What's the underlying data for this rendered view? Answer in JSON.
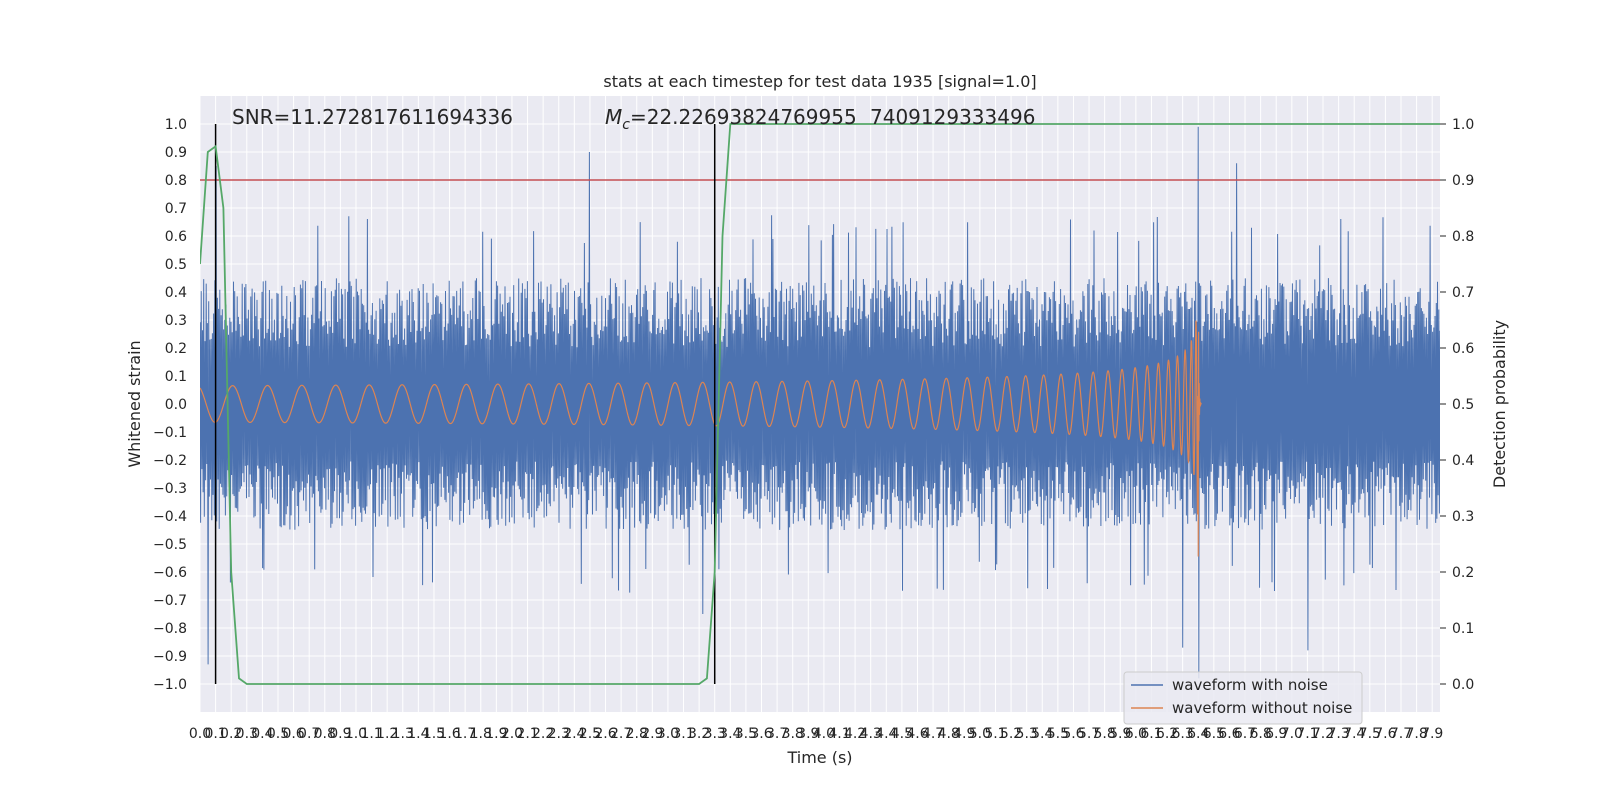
{
  "chart_data": {
    "type": "line",
    "title": "stats at each timestep for test data 1935 [signal=1.0]",
    "xlabel": "Time (s)",
    "ylabel": "Whitened strain",
    "ylabel_right": "Detection probability",
    "xlim": [
      0.0,
      7.95
    ],
    "ylim": [
      -1.1,
      1.1
    ],
    "ylim_right": [
      -0.05,
      1.05
    ],
    "x_ticks": [
      0.0,
      0.1,
      0.2,
      0.3,
      0.4,
      0.5,
      0.6,
      0.7,
      0.8,
      0.9,
      1.0,
      1.1,
      1.2,
      1.3,
      1.4,
      1.5,
      1.6,
      1.7,
      1.8,
      1.9,
      2.0,
      2.1,
      2.2,
      2.3,
      2.4,
      2.5,
      2.6,
      2.7,
      2.8,
      2.9,
      3.0,
      3.1,
      3.2,
      3.3,
      3.4,
      3.5,
      3.6,
      3.7,
      3.8,
      3.9,
      4.0,
      4.1,
      4.2,
      4.3,
      4.4,
      4.5,
      4.6,
      4.7,
      4.8,
      4.9,
      5.0,
      5.1,
      5.2,
      5.3,
      5.4,
      5.5,
      5.6,
      5.7,
      5.8,
      5.9,
      6.0,
      6.1,
      6.2,
      6.3,
      6.4,
      6.5,
      6.6,
      6.7,
      6.8,
      6.9,
      7.0,
      7.1,
      7.2,
      7.3,
      7.4,
      7.5,
      7.6,
      7.7,
      7.8,
      7.9
    ],
    "x_tick_labels": [
      "0.0",
      "0.1",
      "0.2",
      "0.3",
      "0.4",
      "0.5",
      "0.6",
      "0.7",
      "0.8",
      "0.9",
      "1.0",
      "1.1",
      "1.2",
      "1.3",
      "1.4",
      "1.5",
      "1.6",
      "1.7",
      "1.8",
      "1.9",
      "2.0",
      "2.1",
      "2.2",
      "2.3",
      "2.4",
      "2.5",
      "2.6",
      "2.7",
      "2.8",
      "2.9",
      "3.0",
      "3.1",
      "3.2",
      "3.3",
      "3.4",
      "3.5",
      "3.6",
      "3.7",
      "3.8",
      "3.9",
      "4.0",
      "4.1",
      "4.2",
      "4.3",
      "4.4",
      "4.5",
      "4.6",
      "4.7",
      "4.8",
      "4.9",
      "5.0",
      "5.1",
      "5.2",
      "5.3",
      "5.4",
      "5.5",
      "5.6",
      "5.7",
      "5.8",
      "5.9",
      "6.0",
      "6.1",
      "6.2",
      "6.3",
      "6.4",
      "6.5",
      "6.6",
      "6.7",
      "6.8",
      "6.9",
      "7.0",
      "7.1",
      "7.2",
      "7.3",
      "7.4",
      "7.5",
      "7.6",
      "7.7",
      "7.8",
      "7.9"
    ],
    "y_ticks": [
      -1.0,
      -0.9,
      -0.8,
      -0.7,
      -0.6,
      -0.5,
      -0.4,
      -0.3,
      -0.2,
      -0.1,
      0.0,
      0.1,
      0.2,
      0.3,
      0.4,
      0.5,
      0.6,
      0.7,
      0.8,
      0.9,
      1.0
    ],
    "y_tick_labels": [
      "−1.0",
      "−0.9",
      "−0.8",
      "−0.7",
      "−0.6",
      "−0.5",
      "−0.4",
      "−0.3",
      "−0.2",
      "−0.1",
      "0.0",
      "0.1",
      "0.2",
      "0.3",
      "0.4",
      "0.5",
      "0.6",
      "0.7",
      "0.8",
      "0.9",
      "1.0"
    ],
    "y_ticks_right": [
      0.0,
      0.1,
      0.2,
      0.3,
      0.4,
      0.5,
      0.6,
      0.7,
      0.8,
      0.9,
      1.0
    ],
    "y_tick_labels_right": [
      "0.0",
      "0.1",
      "0.2",
      "0.3",
      "0.4",
      "0.5",
      "0.6",
      "0.7",
      "0.8",
      "0.9",
      "1.0"
    ],
    "grid": true,
    "legend_position": "lower-right",
    "annotations": {
      "snr": "SNR=11.272817611694336",
      "mc_symbol": "M",
      "mc_sub": "c",
      "mc_value": "=22.22693824769955",
      "mc_overlap": "7409129333496"
    },
    "series": [
      {
        "name": "waveform with noise",
        "color": "#4c72b0",
        "kind": "noise",
        "x_range": [
          0.0,
          7.95
        ],
        "typical_envelope": [
          -0.45,
          0.45
        ],
        "notable_peaks": [
          {
            "x": 0.05,
            "y": -0.93
          },
          {
            "x": 0.1,
            "y": 0.85
          },
          {
            "x": 2.5,
            "y": 0.9
          },
          {
            "x": 3.22,
            "y": -0.75
          },
          {
            "x": 6.4,
            "y": 0.99
          },
          {
            "x": 6.4,
            "y": -0.98
          },
          {
            "x": 6.65,
            "y": 0.86
          },
          {
            "x": 6.3,
            "y": -0.87
          },
          {
            "x": 7.1,
            "y": -0.88
          }
        ]
      },
      {
        "name": "waveform without noise",
        "color": "#dd8452",
        "kind": "chirp",
        "x_range": [
          0.0,
          6.42
        ],
        "merger_x": 6.4,
        "peak_amplitude": 0.5,
        "min_amplitude": -0.55
      },
      {
        "name": "detection probability",
        "color": "#55a868",
        "axis": "right",
        "x": [
          0.0,
          0.05,
          0.1,
          0.15,
          0.2,
          0.25,
          0.3,
          3.2,
          3.25,
          3.3,
          3.35,
          3.4,
          7.95
        ],
        "y": [
          0.75,
          0.95,
          0.96,
          0.85,
          0.2,
          0.01,
          0.0,
          0.0,
          0.01,
          0.2,
          0.8,
          1.0,
          1.0
        ]
      }
    ],
    "reference_lines": [
      {
        "type": "horizontal",
        "axis": "left",
        "y": 0.8,
        "color": "#c44e52"
      },
      {
        "type": "vertical",
        "x": 0.1,
        "y_range": [
          -1.0,
          1.0
        ],
        "color": "#000000"
      },
      {
        "type": "vertical",
        "x": 3.3,
        "y_range": [
          -1.0,
          1.0
        ],
        "color": "#000000"
      }
    ]
  }
}
